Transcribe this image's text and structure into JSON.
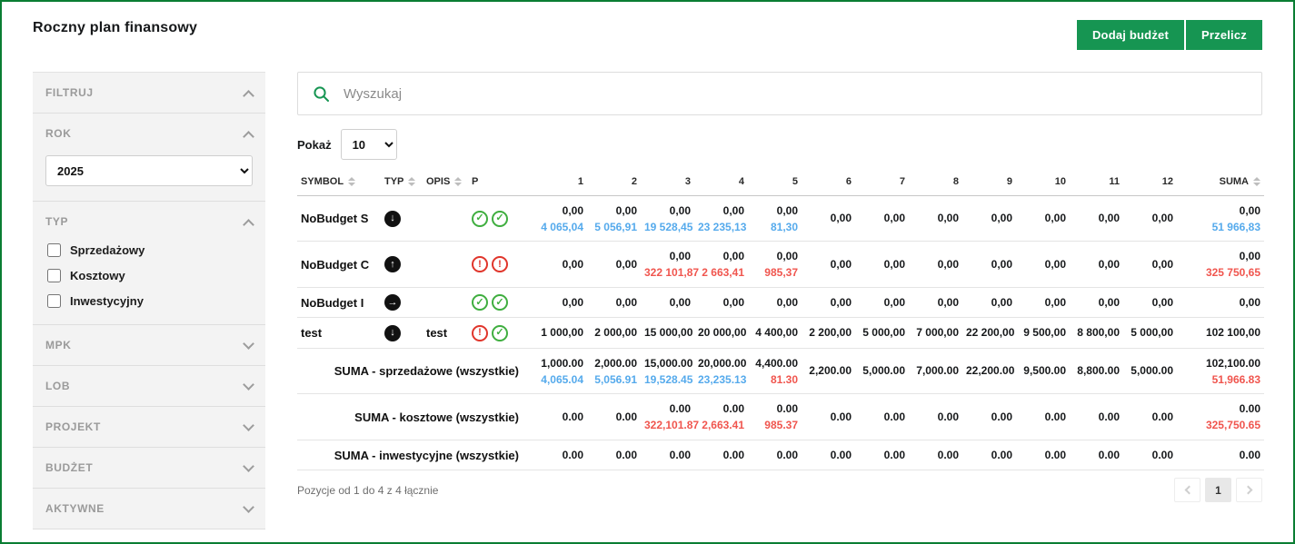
{
  "colors": {
    "accent": "#169552",
    "border_green": "#0a7d33",
    "value_blue": "#55aaec",
    "value_red": "#f0554e",
    "icon_ok_green": "#3fae3f",
    "icon_err_red": "#e0352b"
  },
  "page": {
    "title": "Roczny plan finansowy",
    "buttons": {
      "add_budget": "Dodaj budżet",
      "recalculate": "Przelicz"
    }
  },
  "sidebar": {
    "sections": [
      {
        "key": "filtruj",
        "label": "FILTRUJ",
        "expanded": true
      },
      {
        "key": "rok",
        "label": "ROK",
        "expanded": true,
        "select_value": "2025"
      },
      {
        "key": "typ",
        "label": "TYP",
        "expanded": true,
        "checkboxes": [
          "Sprzedażowy",
          "Kosztowy",
          "Inwestycyjny"
        ]
      },
      {
        "key": "mpk",
        "label": "MPK",
        "expanded": false
      },
      {
        "key": "lob",
        "label": "LOB",
        "expanded": false
      },
      {
        "key": "projekt",
        "label": "PROJEKT",
        "expanded": false
      },
      {
        "key": "budzet",
        "label": "BUDŻET",
        "expanded": false
      },
      {
        "key": "aktywne",
        "label": "AKTYWNE",
        "expanded": false
      }
    ]
  },
  "toolbar": {
    "search_placeholder": "Wyszukaj",
    "show_label": "Pokaż",
    "show_value": "10"
  },
  "table": {
    "columns": [
      {
        "label": "SYMBOL",
        "sortable": true,
        "align": "left"
      },
      {
        "label": "TYP",
        "sortable": true,
        "align": "left"
      },
      {
        "label": "OPIS",
        "sortable": true,
        "align": "left"
      },
      {
        "label": "P",
        "sortable": false,
        "align": "left"
      },
      {
        "label": "1",
        "sortable": false,
        "align": "right"
      },
      {
        "label": "2",
        "sortable": false,
        "align": "right"
      },
      {
        "label": "3",
        "sortable": false,
        "align": "right"
      },
      {
        "label": "4",
        "sortable": false,
        "align": "right"
      },
      {
        "label": "5",
        "sortable": false,
        "align": "right"
      },
      {
        "label": "6",
        "sortable": false,
        "align": "right"
      },
      {
        "label": "7",
        "sortable": false,
        "align": "right"
      },
      {
        "label": "8",
        "sortable": false,
        "align": "right"
      },
      {
        "label": "9",
        "sortable": false,
        "align": "right"
      },
      {
        "label": "10",
        "sortable": false,
        "align": "right"
      },
      {
        "label": "11",
        "sortable": false,
        "align": "right"
      },
      {
        "label": "12",
        "sortable": false,
        "align": "right"
      },
      {
        "label": "SUMA",
        "sortable": true,
        "align": "right"
      }
    ],
    "rows": [
      {
        "symbol": "NoBudget S",
        "typ": "down",
        "opis": "",
        "p": [
          "ok",
          "ok"
        ],
        "cells": [
          {
            "top": "0,00",
            "bot": "4 065,04",
            "botc": "blue"
          },
          {
            "top": "0,00",
            "bot": "5 056,91",
            "botc": "blue"
          },
          {
            "top": "0,00",
            "bot": "19 528,45",
            "botc": "blue"
          },
          {
            "top": "0,00",
            "bot": "23 235,13",
            "botc": "blue"
          },
          {
            "top": "0,00",
            "bot": "81,30",
            "botc": "blue"
          },
          {
            "top": "0,00"
          },
          {
            "top": "0,00"
          },
          {
            "top": "0,00"
          },
          {
            "top": "0,00"
          },
          {
            "top": "0,00"
          },
          {
            "top": "0,00"
          },
          {
            "top": "0,00"
          },
          {
            "top": "0,00",
            "bot": "51 966,83",
            "botc": "blue"
          }
        ]
      },
      {
        "symbol": "NoBudget C",
        "typ": "up",
        "opis": "",
        "p": [
          "err",
          "err"
        ],
        "cells": [
          {
            "top": "0,00"
          },
          {
            "top": "0,00"
          },
          {
            "top": "0,00",
            "bot": "322 101,87",
            "botc": "red"
          },
          {
            "top": "0,00",
            "bot": "2 663,41",
            "botc": "red"
          },
          {
            "top": "0,00",
            "bot": "985,37",
            "botc": "red"
          },
          {
            "top": "0,00"
          },
          {
            "top": "0,00"
          },
          {
            "top": "0,00"
          },
          {
            "top": "0,00"
          },
          {
            "top": "0,00"
          },
          {
            "top": "0,00"
          },
          {
            "top": "0,00"
          },
          {
            "top": "0,00",
            "bot": "325 750,65",
            "botc": "red"
          }
        ]
      },
      {
        "symbol": "NoBudget I",
        "typ": "right",
        "opis": "",
        "p": [
          "ok",
          "ok"
        ],
        "cells": [
          {
            "top": "0,00"
          },
          {
            "top": "0,00"
          },
          {
            "top": "0,00"
          },
          {
            "top": "0,00"
          },
          {
            "top": "0,00"
          },
          {
            "top": "0,00"
          },
          {
            "top": "0,00"
          },
          {
            "top": "0,00"
          },
          {
            "top": "0,00"
          },
          {
            "top": "0,00"
          },
          {
            "top": "0,00"
          },
          {
            "top": "0,00"
          },
          {
            "top": "0,00"
          }
        ]
      },
      {
        "symbol": "test",
        "typ": "down",
        "opis": "test",
        "p": [
          "err",
          "ok"
        ],
        "cells": [
          {
            "top": "1 000,00"
          },
          {
            "top": "2 000,00"
          },
          {
            "top": "15 000,00"
          },
          {
            "top": "20 000,00"
          },
          {
            "top": "4 400,00"
          },
          {
            "top": "2 200,00"
          },
          {
            "top": "5 000,00"
          },
          {
            "top": "7 000,00"
          },
          {
            "top": "22 200,00"
          },
          {
            "top": "9 500,00"
          },
          {
            "top": "8 800,00"
          },
          {
            "top": "5 000,00"
          },
          {
            "top": "102 100,00"
          }
        ]
      }
    ],
    "summary_rows": [
      {
        "label": "SUMA - sprzedażowe (wszystkie)",
        "cells": [
          {
            "top": "1,000.00",
            "bot": "4,065.04",
            "botc": "blue"
          },
          {
            "top": "2,000.00",
            "bot": "5,056.91",
            "botc": "blue"
          },
          {
            "top": "15,000.00",
            "bot": "19,528.45",
            "botc": "blue"
          },
          {
            "top": "20,000.00",
            "bot": "23,235.13",
            "botc": "blue"
          },
          {
            "top": "4,400.00",
            "bot": "81.30",
            "botc": "red"
          },
          {
            "top": "2,200.00"
          },
          {
            "top": "5,000.00"
          },
          {
            "top": "7,000.00"
          },
          {
            "top": "22,200.00"
          },
          {
            "top": "9,500.00"
          },
          {
            "top": "8,800.00"
          },
          {
            "top": "5,000.00"
          },
          {
            "top": "102,100.00",
            "bot": "51,966.83",
            "botc": "red"
          }
        ]
      },
      {
        "label": "SUMA - kosztowe (wszystkie)",
        "cells": [
          {
            "top": "0.00"
          },
          {
            "top": "0.00"
          },
          {
            "top": "0.00",
            "bot": "322,101.87",
            "botc": "red"
          },
          {
            "top": "0.00",
            "bot": "2,663.41",
            "botc": "red"
          },
          {
            "top": "0.00",
            "bot": "985.37",
            "botc": "red"
          },
          {
            "top": "0.00"
          },
          {
            "top": "0.00"
          },
          {
            "top": "0.00"
          },
          {
            "top": "0.00"
          },
          {
            "top": "0.00"
          },
          {
            "top": "0.00"
          },
          {
            "top": "0.00"
          },
          {
            "top": "0.00",
            "bot": "325,750.65",
            "botc": "red"
          }
        ]
      },
      {
        "label": "SUMA - inwestycyjne (wszystkie)",
        "cells": [
          {
            "top": "0.00"
          },
          {
            "top": "0.00"
          },
          {
            "top": "0.00"
          },
          {
            "top": "0.00"
          },
          {
            "top": "0.00"
          },
          {
            "top": "0.00"
          },
          {
            "top": "0.00"
          },
          {
            "top": "0.00"
          },
          {
            "top": "0.00"
          },
          {
            "top": "0.00"
          },
          {
            "top": "0.00"
          },
          {
            "top": "0.00"
          },
          {
            "top": "0.00"
          }
        ]
      }
    ]
  },
  "footer": {
    "info": "Pozycje od 1 do 4 z 4 łącznie",
    "page": "1"
  }
}
